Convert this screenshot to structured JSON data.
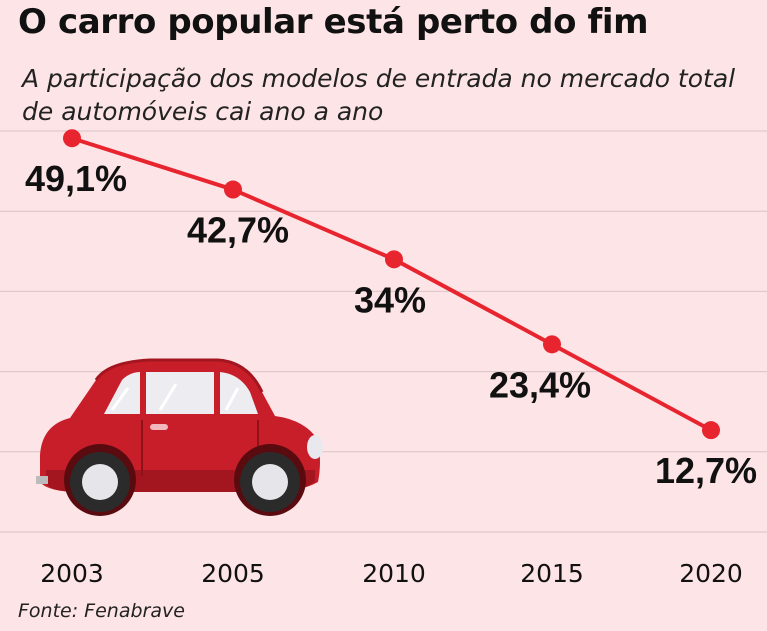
{
  "header": {
    "title": "O carro popular está perto do fim",
    "subtitle": "A participação dos modelos de entrada no mercado total de automóveis cai ano a ano"
  },
  "footer": {
    "source": "Fonte: Fenabrave"
  },
  "colors": {
    "background": "#fde4e6",
    "line": "#e8242e",
    "grid": "#d9c4c6",
    "car": "#c81e2a"
  },
  "illustration": {
    "icon": "car-icon"
  },
  "chart_data": {
    "type": "line",
    "title": "O carro popular está perto do fim",
    "subtitle": "A participação dos modelos de entrada no mercado total de automóveis cai ano a ano",
    "categories": [
      "2003",
      "2005",
      "2010",
      "2015",
      "2020"
    ],
    "values": [
      49.1,
      42.7,
      34,
      23.4,
      12.7
    ],
    "labels": [
      "49,1%",
      "42,7%",
      "34%",
      "23,4%",
      "12,7%"
    ],
    "xlabel": "",
    "ylabel": "",
    "ylim": [
      0,
      50
    ],
    "grid": true,
    "legend": "none"
  }
}
